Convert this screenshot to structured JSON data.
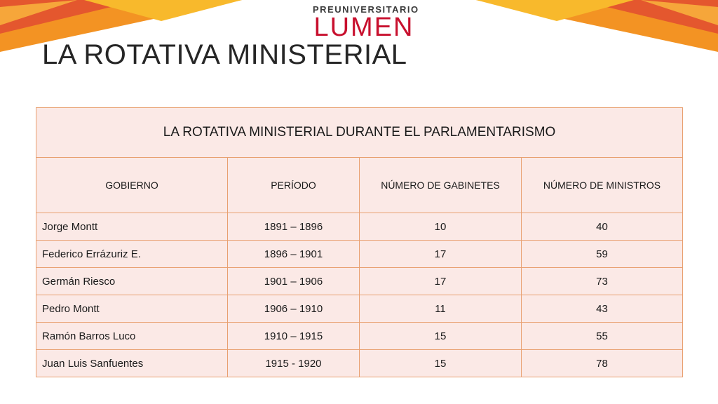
{
  "brand": {
    "line1": "PREUNIVERSITARIO",
    "line2": "LUMEN"
  },
  "slide_title": "LA ROTATIVA MINISTERIAL",
  "table": {
    "caption": "LA ROTATIVA MINISTERIAL DURANTE EL PARLAMENTARISMO",
    "headers": [
      "GOBIERNO",
      "PERÍODO",
      "NÚMERO DE GABINETES",
      "NÚMERO DE MINISTROS"
    ],
    "rows": [
      [
        "Jorge Montt",
        "1891 – 1896",
        "10",
        "40"
      ],
      [
        "Federico Errázuriz E.",
        "1896 – 1901",
        "17",
        "59"
      ],
      [
        "Germán Riesco",
        "1901 – 1906",
        "17",
        "73"
      ],
      [
        "Pedro Montt",
        "1906 – 1910",
        "11",
        "43"
      ],
      [
        "Ramón Barros Luco",
        "1910 – 1915",
        "15",
        "55"
      ],
      [
        "Juan Luis Sanfuentes",
        "1915 - 1920",
        "15",
        "78"
      ]
    ]
  },
  "colors": {
    "accent_orange": "#f39323",
    "accent_yellow": "#f8b92c",
    "accent_red": "#e4572e",
    "brand_red": "#c8102e",
    "table_fill": "#fbe9e6",
    "table_border": "#e8a070"
  }
}
